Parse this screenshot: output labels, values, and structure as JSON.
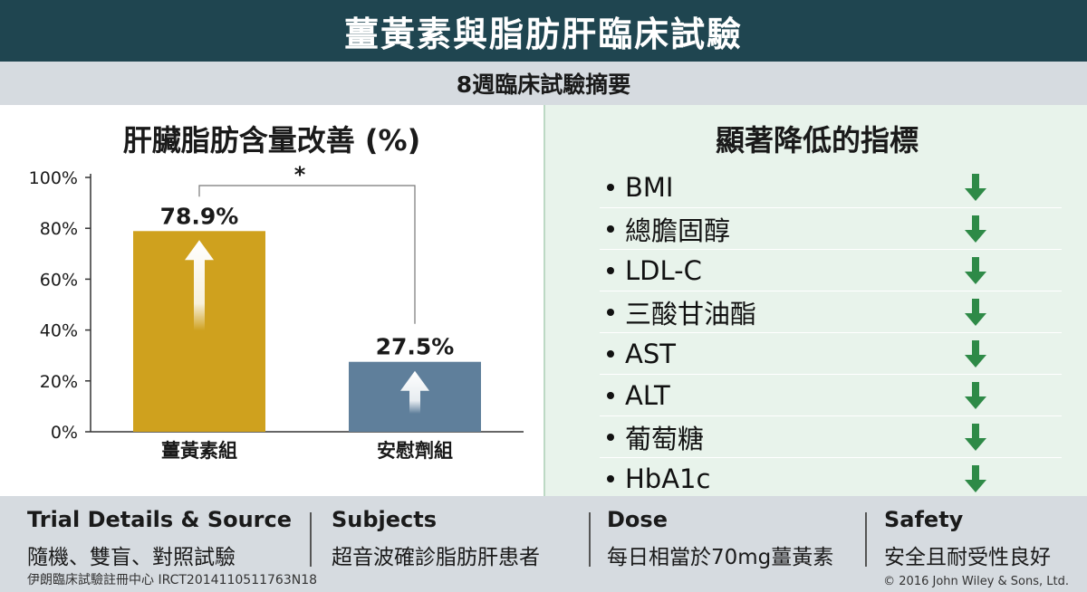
{
  "header": {
    "title": "薑黃素與脂肪肝臨床試驗",
    "subtitle": "8週臨床試驗摘要"
  },
  "chart_data": {
    "type": "bar",
    "title": "肝臟脂肪含量改善 (%)",
    "categories": [
      "薑黃素組",
      "安慰劑組"
    ],
    "values": [
      78.9,
      27.5
    ],
    "value_labels": [
      "78.9%",
      "27.5%"
    ],
    "ylim": [
      0,
      100
    ],
    "yticks": [
      "0%",
      "20%",
      "40%",
      "60%",
      "80%",
      "100%"
    ],
    "yticks_values": [
      0,
      20,
      40,
      60,
      80,
      100
    ],
    "significance": "*",
    "colors": [
      "#cfa11e",
      "#5f7f9b"
    ],
    "grid": false
  },
  "indicators": {
    "title": "顯著降低的指標",
    "items": [
      "BMI",
      "總膽固醇",
      "LDL-C",
      "三酸甘油酯",
      "AST",
      "ALT",
      "葡萄糖",
      "HbA1c"
    ],
    "icon": "green-down-arrow-icon",
    "arrow_color": "#2e8a47"
  },
  "footer": {
    "trial_head": "Trial Details & Source",
    "trial_text": "隨機、雙盲、對照試驗",
    "subjects_head": "Subjects",
    "subjects_text": "超音波確診脂肪肝患者",
    "dose_head": "Dose",
    "dose_text": "每日相當於70mg薑黃素",
    "safety_head": "Safety",
    "safety_text": "安全且耐受性良好",
    "registry": "伊朗臨床試驗註冊中心 IRCT2014110511763N18",
    "copyright": "© 2016 John Wiley & Sons, Ltd."
  }
}
